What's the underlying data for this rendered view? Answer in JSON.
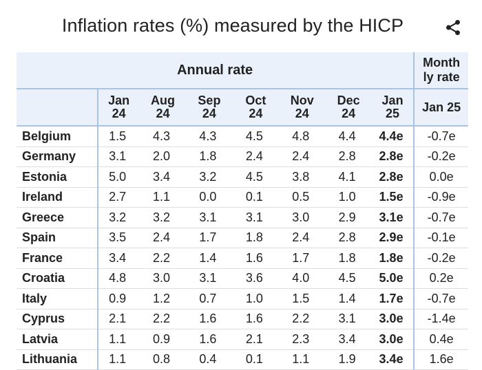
{
  "title": "Inflation rates (%) measured by the HICP",
  "share_icon": "share-icon",
  "colors": {
    "header_bg": "#eaf1fa",
    "divider": "#a9c3e3"
  },
  "chart_data": {
    "type": "table",
    "title": "Inflation rates (%) measured by the HICP",
    "group_headers": [
      "Annual rate",
      "Month ly rate"
    ],
    "columns": [
      "Jan 24",
      "Aug 24",
      "Sep 24",
      "Oct 24",
      "Nov 24",
      "Dec 24",
      "Jan 25",
      "Jan 25"
    ],
    "rows": [
      {
        "country": "Belgium",
        "values": [
          "1.5",
          "4.3",
          "4.3",
          "4.5",
          "4.8",
          "4.4",
          "4.4e",
          "-0.7e"
        ]
      },
      {
        "country": "Germany",
        "values": [
          "3.1",
          "2.0",
          "1.8",
          "2.4",
          "2.4",
          "2.8",
          "2.8e",
          "-0.2e"
        ]
      },
      {
        "country": "Estonia",
        "values": [
          "5.0",
          "3.4",
          "3.2",
          "4.5",
          "3.8",
          "4.1",
          "2.8e",
          "0.0e"
        ]
      },
      {
        "country": "Ireland",
        "values": [
          "2.7",
          "1.1",
          "0.0",
          "0.1",
          "0.5",
          "1.0",
          "1.5e",
          "-0.9e"
        ]
      },
      {
        "country": "Greece",
        "values": [
          "3.2",
          "3.2",
          "3.1",
          "3.1",
          "3.0",
          "2.9",
          "3.1e",
          "-0.7e"
        ]
      },
      {
        "country": "Spain",
        "values": [
          "3.5",
          "2.4",
          "1.7",
          "1.8",
          "2.4",
          "2.8",
          "2.9e",
          "-0.1e"
        ]
      },
      {
        "country": "France",
        "values": [
          "3.4",
          "2.2",
          "1.4",
          "1.6",
          "1.7",
          "1.8",
          "1.8e",
          "-0.2e"
        ]
      },
      {
        "country": "Croatia",
        "values": [
          "4.8",
          "3.0",
          "3.1",
          "3.6",
          "4.0",
          "4.5",
          "5.0e",
          "0.2e"
        ]
      },
      {
        "country": "Italy",
        "values": [
          "0.9",
          "1.2",
          "0.7",
          "1.0",
          "1.5",
          "1.4",
          "1.7e",
          "-0.7e"
        ]
      },
      {
        "country": "Cyprus",
        "values": [
          "2.1",
          "2.2",
          "1.6",
          "1.6",
          "2.2",
          "3.1",
          "3.0e",
          "-1.4e"
        ]
      },
      {
        "country": "Latvia",
        "values": [
          "1.1",
          "0.9",
          "1.6",
          "2.1",
          "2.3",
          "3.4",
          "3.0e",
          "0.4e"
        ]
      },
      {
        "country": "Lithuania",
        "values": [
          "1.1",
          "0.8",
          "0.4",
          "0.1",
          "1.1",
          "1.9",
          "3.4e",
          "1.6e"
        ]
      }
    ]
  }
}
